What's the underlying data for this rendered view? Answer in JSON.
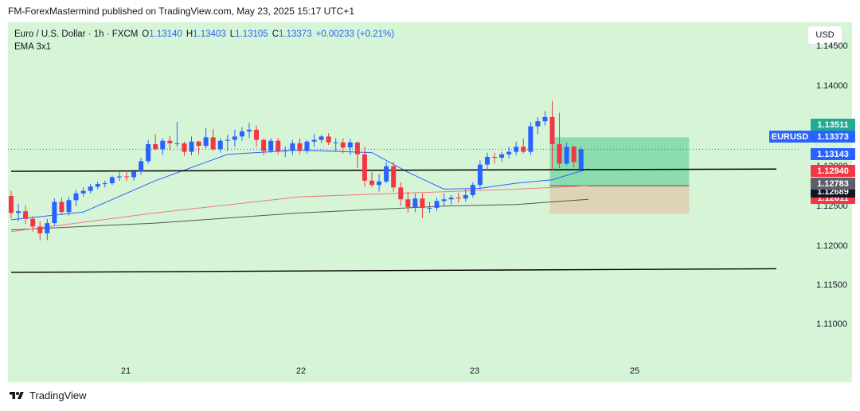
{
  "header": {
    "published": "FM-ForexMastermind published on TradingView.com, May 23, 2025 15:17 UTC+1"
  },
  "legend": {
    "symbol_line": "Euro / U.S. Dollar · 1h · FXCM",
    "o_label": "O",
    "o_value": "1.13140",
    "h_label": "H",
    "h_value": "1.13403",
    "l_label": "L",
    "l_value": "1.13105",
    "c_label": "C",
    "c_value": "1.13373",
    "change": "+0.00233 (+0.21%)",
    "indicator": "EMA 3x1"
  },
  "currency_button": "USD",
  "axis": {
    "price_ticks": [
      "1.14500",
      "1.14000",
      "1.13500",
      "1.13000",
      "1.12500",
      "1.12000",
      "1.11500",
      "1.11000"
    ],
    "time_ticks": [
      "21",
      "22",
      "23",
      "25"
    ]
  },
  "price_tags": {
    "symbol": "EURUSD",
    "take_profit": "1.13511",
    "last": "1.13373",
    "ema_fast": "1.13143",
    "ema_mid": "1.12940",
    "ema_slow": "1.12783",
    "stop_a": "1.12689",
    "stop_b": "1.12611"
  },
  "footer": {
    "brand": "TradingView"
  },
  "colors": {
    "background": "#d6f5d6",
    "up": "#2962ff",
    "down": "#f23645",
    "ema_fast": "#2962ff",
    "ema_mid": "#ef7a7a",
    "ema_slow": "#555555",
    "profit_zone": "#7fd8a6",
    "loss_zone": "#e0cdb0"
  },
  "chart_data": {
    "type": "candlestick",
    "symbol": "EURUSD",
    "timeframe": "1h",
    "ylim": [
      1.10625,
      1.14865
    ],
    "x_ticks": [
      "21",
      "22",
      "23",
      "25"
    ],
    "candles": [
      [
        1.1282,
        1.1288,
        1.1256,
        1.1262
      ],
      [
        1.1262,
        1.1273,
        1.1252,
        1.1264
      ],
      [
        1.1264,
        1.1271,
        1.1249,
        1.1255
      ],
      [
        1.1255,
        1.1258,
        1.124,
        1.1246
      ],
      [
        1.1246,
        1.1252,
        1.123,
        1.1238
      ],
      [
        1.1238,
        1.1255,
        1.123,
        1.125
      ],
      [
        1.125,
        1.1279,
        1.1247,
        1.1275
      ],
      [
        1.1275,
        1.128,
        1.126,
        1.1263
      ],
      [
        1.1263,
        1.1281,
        1.1259,
        1.1277
      ],
      [
        1.1277,
        1.1289,
        1.127,
        1.1285
      ],
      [
        1.1285,
        1.1292,
        1.1281,
        1.1288
      ],
      [
        1.1288,
        1.1296,
        1.1285,
        1.1293
      ],
      [
        1.1293,
        1.1299,
        1.129,
        1.1296
      ],
      [
        1.1296,
        1.13,
        1.1292,
        1.1297
      ],
      [
        1.1297,
        1.1306,
        1.1295,
        1.1304
      ],
      [
        1.1304,
        1.131,
        1.13,
        1.1305
      ],
      [
        1.1305,
        1.1312,
        1.13,
        1.1304
      ],
      [
        1.1304,
        1.1313,
        1.13,
        1.1311
      ],
      [
        1.1311,
        1.1327,
        1.1307,
        1.1323
      ],
      [
        1.1323,
        1.1348,
        1.132,
        1.1343
      ],
      [
        1.1343,
        1.1355,
        1.1336,
        1.1337
      ],
      [
        1.1337,
        1.135,
        1.133,
        1.1347
      ],
      [
        1.1347,
        1.1353,
        1.1336,
        1.1344
      ],
      [
        1.1344,
        1.1369,
        1.134,
        1.1344
      ],
      [
        1.1344,
        1.1346,
        1.1329,
        1.1334
      ],
      [
        1.1334,
        1.1352,
        1.133,
        1.1346
      ],
      [
        1.1346,
        1.1347,
        1.1331,
        1.1341
      ],
      [
        1.1341,
        1.1362,
        1.1338,
        1.1351
      ],
      [
        1.1351,
        1.1361,
        1.1335,
        1.1337
      ],
      [
        1.1337,
        1.135,
        1.1333,
        1.1347
      ],
      [
        1.1347,
        1.1354,
        1.1335,
        1.1348
      ],
      [
        1.1348,
        1.136,
        1.134,
        1.1352
      ],
      [
        1.1352,
        1.1363,
        1.1347,
        1.1358
      ],
      [
        1.1358,
        1.1368,
        1.135,
        1.136
      ],
      [
        1.136,
        1.1365,
        1.134,
        1.1348
      ],
      [
        1.1348,
        1.135,
        1.133,
        1.1335
      ],
      [
        1.1335,
        1.135,
        1.1333,
        1.1347
      ],
      [
        1.1347,
        1.135,
        1.1331,
        1.1335
      ],
      [
        1.1335,
        1.134,
        1.1328,
        1.1336
      ],
      [
        1.1336,
        1.1348,
        1.133,
        1.1344
      ],
      [
        1.1344,
        1.135,
        1.1331,
        1.1335
      ],
      [
        1.1335,
        1.1348,
        1.1332,
        1.1346
      ],
      [
        1.1346,
        1.1355,
        1.134,
        1.1348
      ],
      [
        1.1348,
        1.1354,
        1.1344,
        1.1352
      ],
      [
        1.1352,
        1.1356,
        1.1342,
        1.1345
      ],
      [
        1.1345,
        1.135,
        1.1335,
        1.1345
      ],
      [
        1.1345,
        1.135,
        1.1332,
        1.1339
      ],
      [
        1.1339,
        1.1349,
        1.133,
        1.1345
      ],
      [
        1.1345,
        1.1346,
        1.1315,
        1.1331
      ],
      [
        1.1331,
        1.134,
        1.1293,
        1.13
      ],
      [
        1.13,
        1.131,
        1.1292,
        1.1295
      ],
      [
        1.1295,
        1.1308,
        1.1287,
        1.1299
      ],
      [
        1.1299,
        1.1322,
        1.1297,
        1.1317
      ],
      [
        1.1317,
        1.1322,
        1.1287,
        1.1292
      ],
      [
        1.1292,
        1.1298,
        1.127,
        1.1278
      ],
      [
        1.1278,
        1.1287,
        1.1262,
        1.1269
      ],
      [
        1.1269,
        1.1285,
        1.1263,
        1.1279
      ],
      [
        1.1279,
        1.1285,
        1.1256,
        1.1268
      ],
      [
        1.1268,
        1.1275,
        1.1262,
        1.1268
      ],
      [
        1.1268,
        1.128,
        1.1264,
        1.1276
      ],
      [
        1.1276,
        1.1285,
        1.127,
        1.1278
      ],
      [
        1.1278,
        1.1283,
        1.1272,
        1.128
      ],
      [
        1.128,
        1.1286,
        1.1274,
        1.1279
      ],
      [
        1.1279,
        1.129,
        1.1275,
        1.1283
      ],
      [
        1.1283,
        1.1298,
        1.128,
        1.1295
      ],
      [
        1.1295,
        1.1324,
        1.129,
        1.1319
      ],
      [
        1.1319,
        1.1333,
        1.1312,
        1.1328
      ],
      [
        1.1328,
        1.1333,
        1.132,
        1.1327
      ],
      [
        1.1327,
        1.1334,
        1.1322,
        1.1331
      ],
      [
        1.1331,
        1.134,
        1.1326,
        1.1334
      ],
      [
        1.1334,
        1.1346,
        1.133,
        1.134
      ],
      [
        1.134,
        1.135,
        1.1332,
        1.1334
      ],
      [
        1.1334,
        1.1369,
        1.133,
        1.1364
      ],
      [
        1.1364,
        1.1375,
        1.1355,
        1.137
      ],
      [
        1.137,
        1.1382,
        1.1365,
        1.1375
      ],
      [
        1.1375,
        1.1394,
        1.1312,
        1.1343
      ],
      [
        1.1343,
        1.138,
        1.1315,
        1.132
      ],
      [
        1.132,
        1.1345,
        1.1318,
        1.134
      ],
      [
        1.134,
        1.1341,
        1.1316,
        1.1322
      ],
      [
        1.1314,
        1.134,
        1.131,
        1.1337
      ]
    ],
    "ema_fast": [
      [
        0,
        1.1254
      ],
      [
        10,
        1.1263
      ],
      [
        20,
        1.13
      ],
      [
        30,
        1.1331
      ],
      [
        40,
        1.1336
      ],
      [
        50,
        1.1333
      ],
      [
        55,
        1.131
      ],
      [
        60,
        1.129
      ],
      [
        65,
        1.1291
      ],
      [
        70,
        1.1297
      ],
      [
        75,
        1.1301
      ],
      [
        80,
        1.1314
      ]
    ],
    "ema_mid": [
      [
        0,
        1.124
      ],
      [
        20,
        1.1262
      ],
      [
        40,
        1.1281
      ],
      [
        60,
        1.1287
      ],
      [
        70,
        1.129
      ],
      [
        80,
        1.1294
      ]
    ],
    "ema_slow": [
      [
        0,
        1.1242
      ],
      [
        20,
        1.125
      ],
      [
        40,
        1.1262
      ],
      [
        60,
        1.127
      ],
      [
        70,
        1.1272
      ],
      [
        80,
        1.1278
      ]
    ],
    "trend_lines": [
      [
        [
          0,
          1.1311
        ],
        [
          3175,
          1.1391
        ]
      ],
      [
        [
          0,
          1.1192
        ],
        [
          3175,
          1.132
        ]
      ]
    ],
    "position": {
      "x0": 75,
      "x1": 89,
      "entry": 1.1294,
      "target": 1.13511,
      "stop": 1.12611
    }
  }
}
